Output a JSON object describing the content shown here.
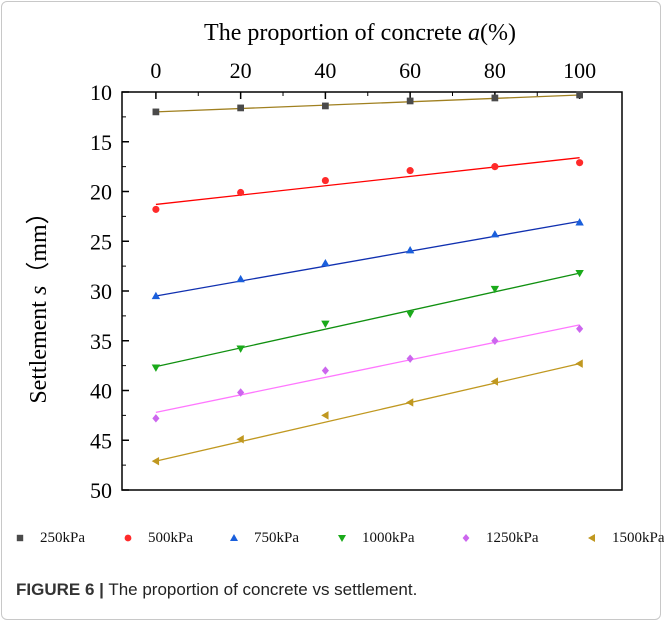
{
  "chart_data": {
    "type": "scatter",
    "xlabel": "The proportion of concrete a(%)",
    "xlabel_main": "The proportion of concrete ",
    "xlabel_var": "a",
    "xlabel_unit": "(%)",
    "ylabel": "Settlement s (mm)",
    "ylabel_main": "Settlement ",
    "ylabel_var": "s",
    "ylabel_unit": "（mm）",
    "x_axis_position": "top",
    "y_axis_inverted": true,
    "xlim": [
      -8,
      110
    ],
    "ylim": [
      10,
      50
    ],
    "x_ticks": [
      0,
      20,
      40,
      60,
      80,
      100
    ],
    "y_ticks": [
      10,
      15,
      20,
      25,
      30,
      35,
      40,
      45,
      50
    ],
    "x": [
      0,
      20,
      40,
      60,
      80,
      100
    ],
    "legend_position": "bottom",
    "series": [
      {
        "name": "250kPa",
        "marker": "square",
        "color": "#4a4a4a",
        "fit_color": "#a08020",
        "values": [
          12.0,
          11.6,
          11.4,
          10.9,
          10.6,
          10.3
        ],
        "fit": [
          12.0,
          10.3
        ]
      },
      {
        "name": "500kPa",
        "marker": "circle",
        "color": "#ff2a2a",
        "fit_color": "#ff0000",
        "values": [
          21.8,
          20.1,
          18.9,
          17.9,
          17.5,
          17.1
        ],
        "fit": [
          21.3,
          16.6
        ]
      },
      {
        "name": "750kPa",
        "marker": "triangle-up",
        "color": "#1a5fdc",
        "fit_color": "#1030b0",
        "values": [
          30.5,
          28.8,
          27.2,
          25.9,
          24.3,
          23.1
        ],
        "fit": [
          30.5,
          23.0
        ]
      },
      {
        "name": "1000kPa",
        "marker": "triangle-down",
        "color": "#1aaa1a",
        "fit_color": "#109010",
        "values": [
          37.7,
          35.8,
          33.3,
          32.3,
          29.8,
          28.2
        ],
        "fit": [
          37.6,
          28.2
        ]
      },
      {
        "name": "1250kPa",
        "marker": "diamond",
        "color": "#cc66ee",
        "fit_color": "#ff77ff",
        "values": [
          42.8,
          40.2,
          38.0,
          36.8,
          35.0,
          33.8
        ],
        "fit": [
          42.2,
          33.4
        ]
      },
      {
        "name": "1500kPa",
        "marker": "triangle-left",
        "color": "#c09820",
        "fit_color": "#c09820",
        "values": [
          47.1,
          44.9,
          42.5,
          41.2,
          39.1,
          37.3
        ],
        "fit": [
          47.1,
          37.3
        ]
      }
    ]
  },
  "caption": {
    "label": "FIGURE 6",
    "separator": "|",
    "text": " The proportion of concrete vs settlement."
  }
}
